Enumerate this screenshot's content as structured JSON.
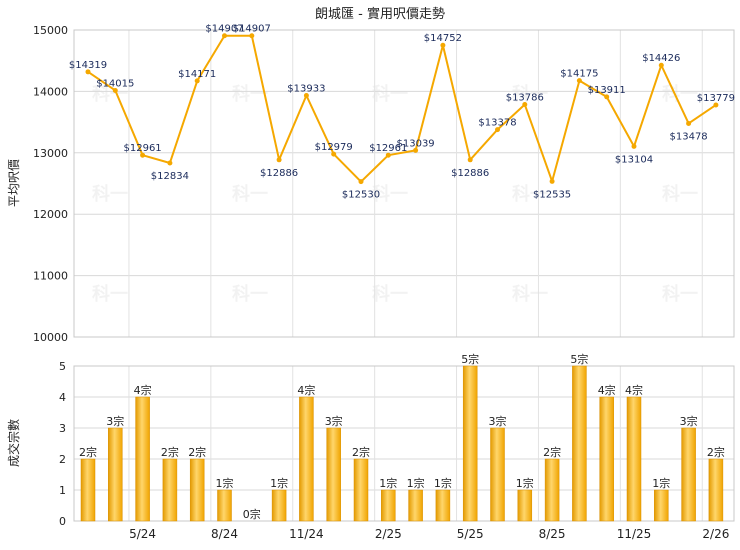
{
  "chart_data": [
    {
      "type": "line",
      "title": "朗城匯 - 實用呎價走勢",
      "ylabel": "平均呎價",
      "xlabel": "",
      "ylim": [
        10000,
        15000
      ],
      "yticks": [
        "10000",
        "11000",
        "12000",
        "13000",
        "14000",
        "15000"
      ],
      "grid": true,
      "color": "#f5a800",
      "values": [
        14319,
        14015,
        12961,
        12834,
        14171,
        14907,
        14907,
        12886,
        13933,
        12979,
        12530,
        12961,
        13039,
        14752,
        12886,
        13378,
        13786,
        12535,
        14175,
        13911,
        13104,
        14426,
        13478,
        13779
      ],
      "labels": [
        "$14319",
        "$14015",
        "$12961",
        "$12834",
        "$14171",
        "$14907",
        "$14907",
        "$12886",
        "$13933",
        "$12979",
        "$12530",
        "$12961",
        "$13039",
        "$14752",
        "$12886",
        "$13378",
        "$13786",
        "$12535",
        "$14175",
        "$13911",
        "$13104",
        "$14426",
        "$13478",
        "$13779"
      ],
      "watermark": "科一"
    },
    {
      "type": "bar",
      "ylabel": "成交宗數",
      "xlabel": "",
      "ylim": [
        0,
        5
      ],
      "yticks": [
        "0",
        "1",
        "2",
        "3",
        "4",
        "5"
      ],
      "grid": true,
      "color": "#f5a800",
      "values": [
        2,
        3,
        4,
        2,
        2,
        1,
        0,
        1,
        4,
        3,
        2,
        1,
        1,
        1,
        5,
        3,
        1,
        2,
        5,
        4,
        4,
        1,
        3,
        2
      ],
      "labels": [
        "2宗",
        "3宗",
        "4宗",
        "2宗",
        "2宗",
        "1宗",
        "0宗",
        "1宗",
        "4宗",
        "3宗",
        "2宗",
        "1宗",
        "1宗",
        "1宗",
        "5宗",
        "3宗",
        "1宗",
        "2宗",
        "5宗",
        "4宗",
        "4宗",
        "1宗",
        "3宗",
        "2宗"
      ],
      "xticks": [
        "5/24",
        "8/24",
        "11/24",
        "2/25",
        "5/25",
        "8/25",
        "11/25",
        "2/26"
      ],
      "xtick_positions": [
        2,
        5,
        8,
        11,
        14,
        17,
        20,
        23
      ]
    }
  ]
}
